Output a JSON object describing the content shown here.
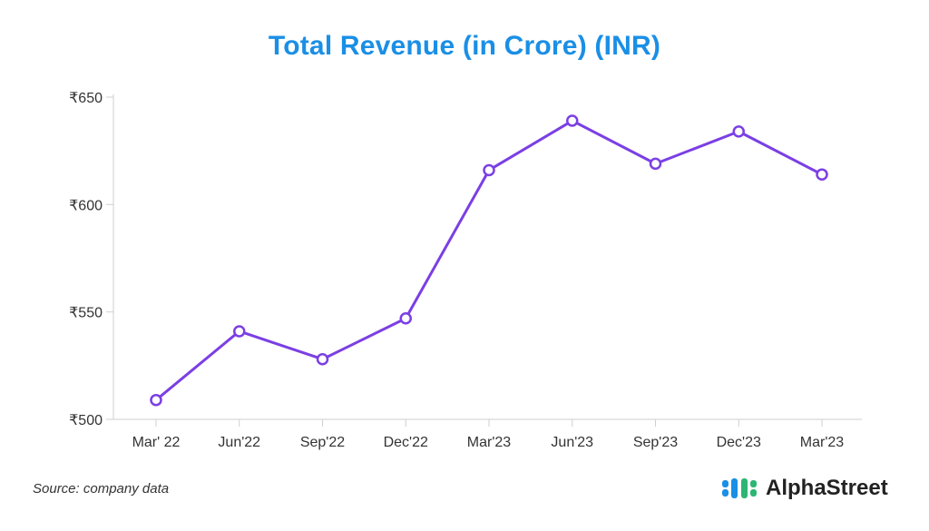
{
  "chart_data": {
    "type": "line",
    "title": "Total Revenue (in Crore) (INR)",
    "categories": [
      "Mar' 22",
      "Jun'22",
      "Sep'22",
      "Dec'22",
      "Mar'23",
      "Jun'23",
      "Sep'23",
      "Dec'23",
      "Mar'23"
    ],
    "series": [
      {
        "name": "Total Revenue",
        "values": [
          509,
          541,
          528,
          547,
          616,
          639,
          619,
          634,
          614
        ]
      }
    ],
    "ylim": [
      500,
      650
    ],
    "yticks": [
      500,
      550,
      600,
      650
    ],
    "ytick_labels": [
      "₹500",
      "₹550",
      "₹600",
      "₹650"
    ],
    "xlabel": "",
    "ylabel": "",
    "grid": false,
    "line_color": "#7b3fe4"
  },
  "footer": {
    "source": "Source: company data",
    "brand": "AlphaStreet",
    "brand_colors": [
      "#1a8fe6",
      "#2bb673"
    ]
  }
}
